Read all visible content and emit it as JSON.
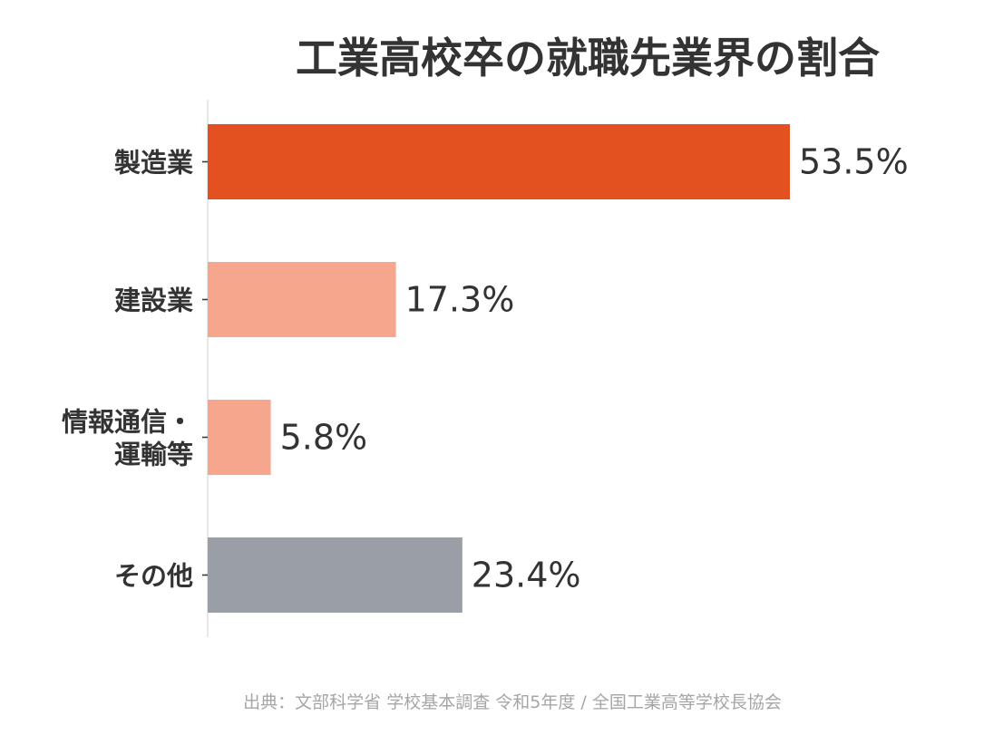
{
  "chart_data": {
    "type": "bar",
    "orientation": "horizontal",
    "title": "工業高校卒の就職先業界の割合",
    "categories": [
      "製造業",
      "建設業",
      "情報通信・運輸等",
      "その他"
    ],
    "category_lines": [
      [
        "製造業"
      ],
      [
        "建設業"
      ],
      [
        "情報通信・",
        "運輸等"
      ],
      [
        "その他"
      ]
    ],
    "values": [
      53.5,
      17.3,
      5.8,
      23.4
    ],
    "value_labels": [
      "53.5%",
      "17.3%",
      "5.8%",
      "23.4%"
    ],
    "colors": [
      "#e35120",
      "#f5a68d",
      "#f5a68d",
      "#9a9ea6"
    ],
    "xlim": [
      0,
      53.5
    ],
    "grid": false,
    "source": "出典：文部科学省 学校基本調査 令和5年度 / 全国工業高等学校長協会"
  }
}
